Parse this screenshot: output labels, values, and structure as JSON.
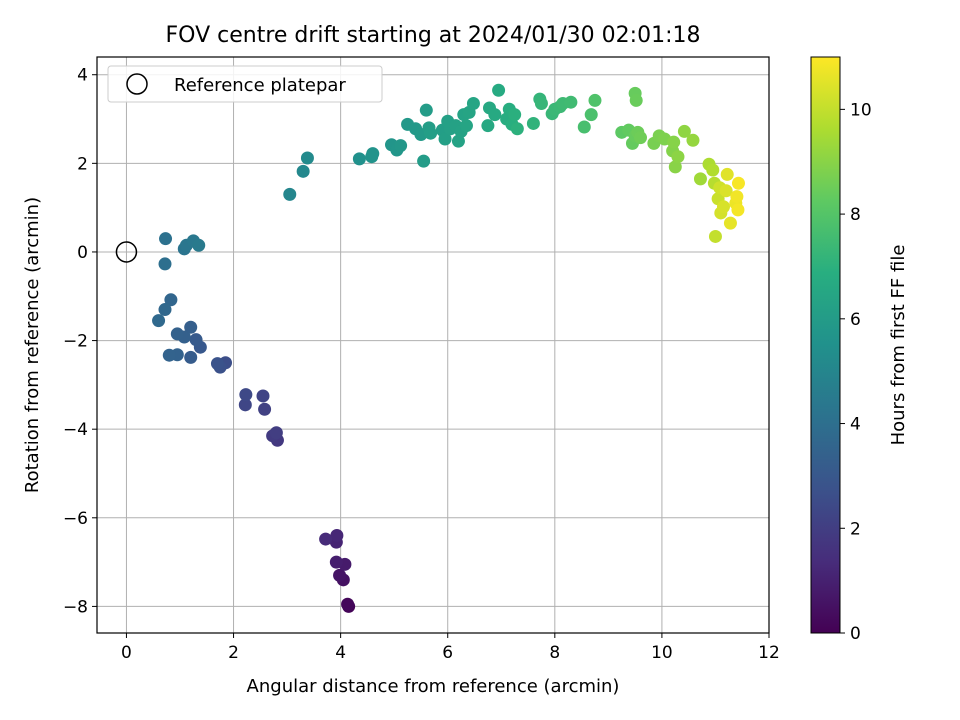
{
  "chart_data": {
    "type": "scatter",
    "title": "FOV centre drift starting at 2024/01/30 02:01:18",
    "xlabel": "Angular distance from reference (arcmin)",
    "ylabel": "Rotation from reference (arcmin)",
    "xlim": [
      -0.55,
      12
    ],
    "ylim": [
      -8.6,
      4.4
    ],
    "xticks": [
      0,
      2,
      4,
      6,
      8,
      10,
      12
    ],
    "yticks": [
      -8,
      -6,
      -4,
      -2,
      0,
      2,
      4
    ],
    "grid": true,
    "legend": {
      "placement": "top-left",
      "entries": [
        "Reference platepar"
      ]
    },
    "reference_point": {
      "x": 0,
      "y": 0
    },
    "colorbar": {
      "label": "Hours from first FF file",
      "range": [
        0,
        11
      ],
      "ticks": [
        0,
        2,
        4,
        6,
        8,
        10
      ],
      "colormap": "viridis"
    },
    "points": [
      {
        "x": 4.15,
        "y": -8.0,
        "c": 0.1
      },
      {
        "x": 4.13,
        "y": -7.95,
        "c": 0.2
      },
      {
        "x": 4.05,
        "y": -7.4,
        "c": 0.5
      },
      {
        "x": 3.98,
        "y": -7.3,
        "c": 0.6
      },
      {
        "x": 4.08,
        "y": -7.05,
        "c": 0.8
      },
      {
        "x": 3.92,
        "y": -7.0,
        "c": 0.9
      },
      {
        "x": 3.92,
        "y": -6.55,
        "c": 1.1
      },
      {
        "x": 3.93,
        "y": -6.4,
        "c": 1.2
      },
      {
        "x": 3.72,
        "y": -6.48,
        "c": 1.3
      },
      {
        "x": 2.82,
        "y": -4.25,
        "c": 1.8
      },
      {
        "x": 2.73,
        "y": -4.15,
        "c": 1.9
      },
      {
        "x": 2.8,
        "y": -4.08,
        "c": 2.0
      },
      {
        "x": 2.58,
        "y": -3.55,
        "c": 2.1
      },
      {
        "x": 2.55,
        "y": -3.25,
        "c": 2.2
      },
      {
        "x": 2.22,
        "y": -3.45,
        "c": 2.3
      },
      {
        "x": 2.23,
        "y": -3.22,
        "c": 2.4
      },
      {
        "x": 1.85,
        "y": -2.5,
        "c": 2.6
      },
      {
        "x": 1.75,
        "y": -2.6,
        "c": 2.7
      },
      {
        "x": 1.7,
        "y": -2.52,
        "c": 2.8
      },
      {
        "x": 1.38,
        "y": -2.15,
        "c": 3.0
      },
      {
        "x": 1.3,
        "y": -1.98,
        "c": 3.1
      },
      {
        "x": 1.2,
        "y": -2.38,
        "c": 3.2
      },
      {
        "x": 1.2,
        "y": -1.7,
        "c": 3.3
      },
      {
        "x": 1.08,
        "y": -1.92,
        "c": 3.35
      },
      {
        "x": 0.95,
        "y": -1.85,
        "c": 3.4
      },
      {
        "x": 0.95,
        "y": -2.32,
        "c": 3.45
      },
      {
        "x": 0.8,
        "y": -2.33,
        "c": 3.5
      },
      {
        "x": 0.83,
        "y": -1.08,
        "c": 3.6
      },
      {
        "x": 0.72,
        "y": -1.3,
        "c": 3.7
      },
      {
        "x": 0.6,
        "y": -1.55,
        "c": 3.75
      },
      {
        "x": 0.72,
        "y": -0.27,
        "c": 4.0
      },
      {
        "x": 0.73,
        "y": 0.3,
        "c": 4.1
      },
      {
        "x": 1.08,
        "y": 0.07,
        "c": 4.2
      },
      {
        "x": 1.12,
        "y": 0.15,
        "c": 4.3
      },
      {
        "x": 1.25,
        "y": 0.25,
        "c": 4.4
      },
      {
        "x": 1.35,
        "y": 0.15,
        "c": 4.5
      },
      {
        "x": 3.05,
        "y": 1.3,
        "c": 5.0
      },
      {
        "x": 3.3,
        "y": 1.82,
        "c": 5.1
      },
      {
        "x": 3.38,
        "y": 2.12,
        "c": 5.2
      },
      {
        "x": 4.35,
        "y": 2.1,
        "c": 5.5
      },
      {
        "x": 4.58,
        "y": 2.15,
        "c": 5.6
      },
      {
        "x": 4.6,
        "y": 2.22,
        "c": 5.6
      },
      {
        "x": 4.95,
        "y": 2.42,
        "c": 5.7
      },
      {
        "x": 5.05,
        "y": 2.3,
        "c": 5.75
      },
      {
        "x": 5.12,
        "y": 2.4,
        "c": 5.8
      },
      {
        "x": 5.25,
        "y": 2.88,
        "c": 5.85
      },
      {
        "x": 5.4,
        "y": 2.78,
        "c": 5.9
      },
      {
        "x": 5.5,
        "y": 2.65,
        "c": 5.95
      },
      {
        "x": 5.55,
        "y": 2.05,
        "c": 6.0
      },
      {
        "x": 5.6,
        "y": 3.2,
        "c": 6.0
      },
      {
        "x": 5.65,
        "y": 2.8,
        "c": 6.05
      },
      {
        "x": 5.68,
        "y": 2.68,
        "c": 6.1
      },
      {
        "x": 5.9,
        "y": 2.75,
        "c": 6.1
      },
      {
        "x": 5.95,
        "y": 2.55,
        "c": 6.15
      },
      {
        "x": 6.0,
        "y": 2.95,
        "c": 6.2
      },
      {
        "x": 6.05,
        "y": 2.78,
        "c": 6.2
      },
      {
        "x": 6.15,
        "y": 2.85,
        "c": 6.25
      },
      {
        "x": 6.2,
        "y": 2.5,
        "c": 6.3
      },
      {
        "x": 6.25,
        "y": 2.72,
        "c": 6.3
      },
      {
        "x": 6.3,
        "y": 3.1,
        "c": 6.35
      },
      {
        "x": 6.35,
        "y": 2.85,
        "c": 6.4
      },
      {
        "x": 6.4,
        "y": 3.15,
        "c": 6.4
      },
      {
        "x": 6.48,
        "y": 3.35,
        "c": 6.45
      },
      {
        "x": 6.75,
        "y": 2.85,
        "c": 6.6
      },
      {
        "x": 6.78,
        "y": 3.25,
        "c": 6.6
      },
      {
        "x": 6.88,
        "y": 3.1,
        "c": 6.65
      },
      {
        "x": 6.95,
        "y": 3.65,
        "c": 6.7
      },
      {
        "x": 7.1,
        "y": 3.0,
        "c": 6.8
      },
      {
        "x": 7.15,
        "y": 3.22,
        "c": 6.85
      },
      {
        "x": 7.2,
        "y": 2.88,
        "c": 6.9
      },
      {
        "x": 7.25,
        "y": 3.1,
        "c": 6.95
      },
      {
        "x": 7.3,
        "y": 2.78,
        "c": 7.0
      },
      {
        "x": 7.6,
        "y": 2.9,
        "c": 7.1
      },
      {
        "x": 7.72,
        "y": 3.45,
        "c": 7.2
      },
      {
        "x": 7.75,
        "y": 3.35,
        "c": 7.25
      },
      {
        "x": 7.95,
        "y": 3.12,
        "c": 7.3
      },
      {
        "x": 8.0,
        "y": 3.22,
        "c": 7.35
      },
      {
        "x": 8.1,
        "y": 3.28,
        "c": 7.4
      },
      {
        "x": 8.15,
        "y": 3.35,
        "c": 7.45
      },
      {
        "x": 8.3,
        "y": 3.38,
        "c": 7.5
      },
      {
        "x": 8.55,
        "y": 2.82,
        "c": 7.7
      },
      {
        "x": 8.68,
        "y": 3.1,
        "c": 7.8
      },
      {
        "x": 8.75,
        "y": 3.42,
        "c": 7.9
      },
      {
        "x": 9.25,
        "y": 2.7,
        "c": 8.2
      },
      {
        "x": 9.38,
        "y": 2.75,
        "c": 8.3
      },
      {
        "x": 9.45,
        "y": 2.45,
        "c": 8.35
      },
      {
        "x": 9.5,
        "y": 2.62,
        "c": 8.4
      },
      {
        "x": 9.5,
        "y": 3.58,
        "c": 8.4
      },
      {
        "x": 9.52,
        "y": 3.42,
        "c": 8.45
      },
      {
        "x": 9.55,
        "y": 2.7,
        "c": 8.5
      },
      {
        "x": 9.6,
        "y": 2.58,
        "c": 8.55
      },
      {
        "x": 9.85,
        "y": 2.45,
        "c": 8.7
      },
      {
        "x": 9.95,
        "y": 2.62,
        "c": 8.75
      },
      {
        "x": 10.05,
        "y": 2.55,
        "c": 8.8
      },
      {
        "x": 10.2,
        "y": 2.28,
        "c": 8.9
      },
      {
        "x": 10.22,
        "y": 2.48,
        "c": 8.95
      },
      {
        "x": 10.25,
        "y": 1.92,
        "c": 9.0
      },
      {
        "x": 10.3,
        "y": 2.15,
        "c": 9.05
      },
      {
        "x": 10.42,
        "y": 2.72,
        "c": 9.1
      },
      {
        "x": 10.58,
        "y": 2.52,
        "c": 9.2
      },
      {
        "x": 10.72,
        "y": 1.65,
        "c": 9.4
      },
      {
        "x": 10.88,
        "y": 1.98,
        "c": 9.6
      },
      {
        "x": 10.95,
        "y": 1.85,
        "c": 9.7
      },
      {
        "x": 10.98,
        "y": 1.55,
        "c": 9.8
      },
      {
        "x": 11.0,
        "y": 0.35,
        "c": 10.0
      },
      {
        "x": 11.05,
        "y": 1.2,
        "c": 10.1
      },
      {
        "x": 11.08,
        "y": 1.45,
        "c": 10.2
      },
      {
        "x": 11.1,
        "y": 0.88,
        "c": 10.3
      },
      {
        "x": 11.15,
        "y": 1.02,
        "c": 10.35
      },
      {
        "x": 11.2,
        "y": 1.38,
        "c": 10.4
      },
      {
        "x": 11.22,
        "y": 1.75,
        "c": 10.5
      },
      {
        "x": 11.28,
        "y": 0.65,
        "c": 10.6
      },
      {
        "x": 11.38,
        "y": 1.1,
        "c": 10.7
      },
      {
        "x": 11.4,
        "y": 1.25,
        "c": 10.8
      },
      {
        "x": 11.42,
        "y": 0.95,
        "c": 10.85
      },
      {
        "x": 11.43,
        "y": 1.55,
        "c": 10.9
      }
    ]
  }
}
